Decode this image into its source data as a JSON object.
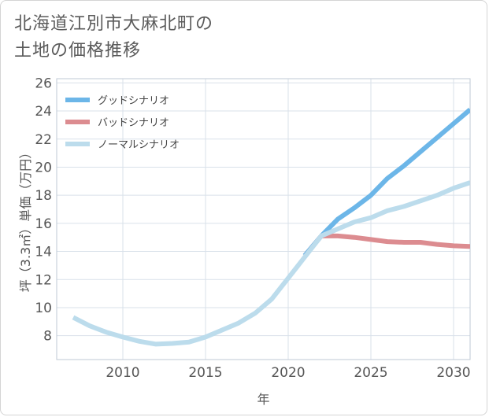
{
  "title": {
    "line1": "北海道江別市大麻北町の",
    "line2": "土地の価格推移"
  },
  "chart_data": {
    "type": "line",
    "xlabel": "年",
    "ylabel": "坪（3.3㎡）単価（万円）",
    "xlim": [
      2006,
      2031
    ],
    "ylim": [
      6.3,
      26.3
    ],
    "xticks": [
      2010,
      2015,
      2020,
      2025,
      2030
    ],
    "yticks": [
      8,
      10,
      12,
      14,
      16,
      18,
      20,
      22,
      24,
      26
    ],
    "grid": true,
    "legend_position": "top-left",
    "series": [
      {
        "name": "グッドシナリオ",
        "color": "#6cb6e8",
        "x": [
          2021,
          2022,
          2023,
          2024,
          2025,
          2026,
          2027,
          2028,
          2029,
          2030,
          2031
        ],
        "y": [
          13.7,
          15.1,
          16.3,
          17.1,
          18.0,
          19.2,
          20.1,
          21.1,
          22.1,
          23.1,
          24.1
        ]
      },
      {
        "name": "バッドシナリオ",
        "color": "#dc8c90",
        "x": [
          2021,
          2022,
          2023,
          2024,
          2025,
          2026,
          2027,
          2028,
          2029,
          2030,
          2031
        ],
        "y": [
          13.7,
          15.1,
          15.1,
          15.0,
          14.85,
          14.7,
          14.65,
          14.65,
          14.5,
          14.4,
          14.35
        ]
      },
      {
        "name": "ノーマルシナリオ",
        "color": "#bcdcec",
        "x": [
          2007,
          2008,
          2009,
          2010,
          2011,
          2012,
          2013,
          2014,
          2015,
          2016,
          2017,
          2018,
          2019,
          2020,
          2021,
          2022,
          2023,
          2024,
          2025,
          2026,
          2027,
          2028,
          2029,
          2030,
          2031
        ],
        "y": [
          9.3,
          8.7,
          8.25,
          7.9,
          7.6,
          7.4,
          7.45,
          7.55,
          7.9,
          8.4,
          8.9,
          9.6,
          10.6,
          12.1,
          13.6,
          15.1,
          15.6,
          16.1,
          16.4,
          16.9,
          17.2,
          17.6,
          18.0,
          18.5,
          18.9
        ]
      }
    ]
  }
}
